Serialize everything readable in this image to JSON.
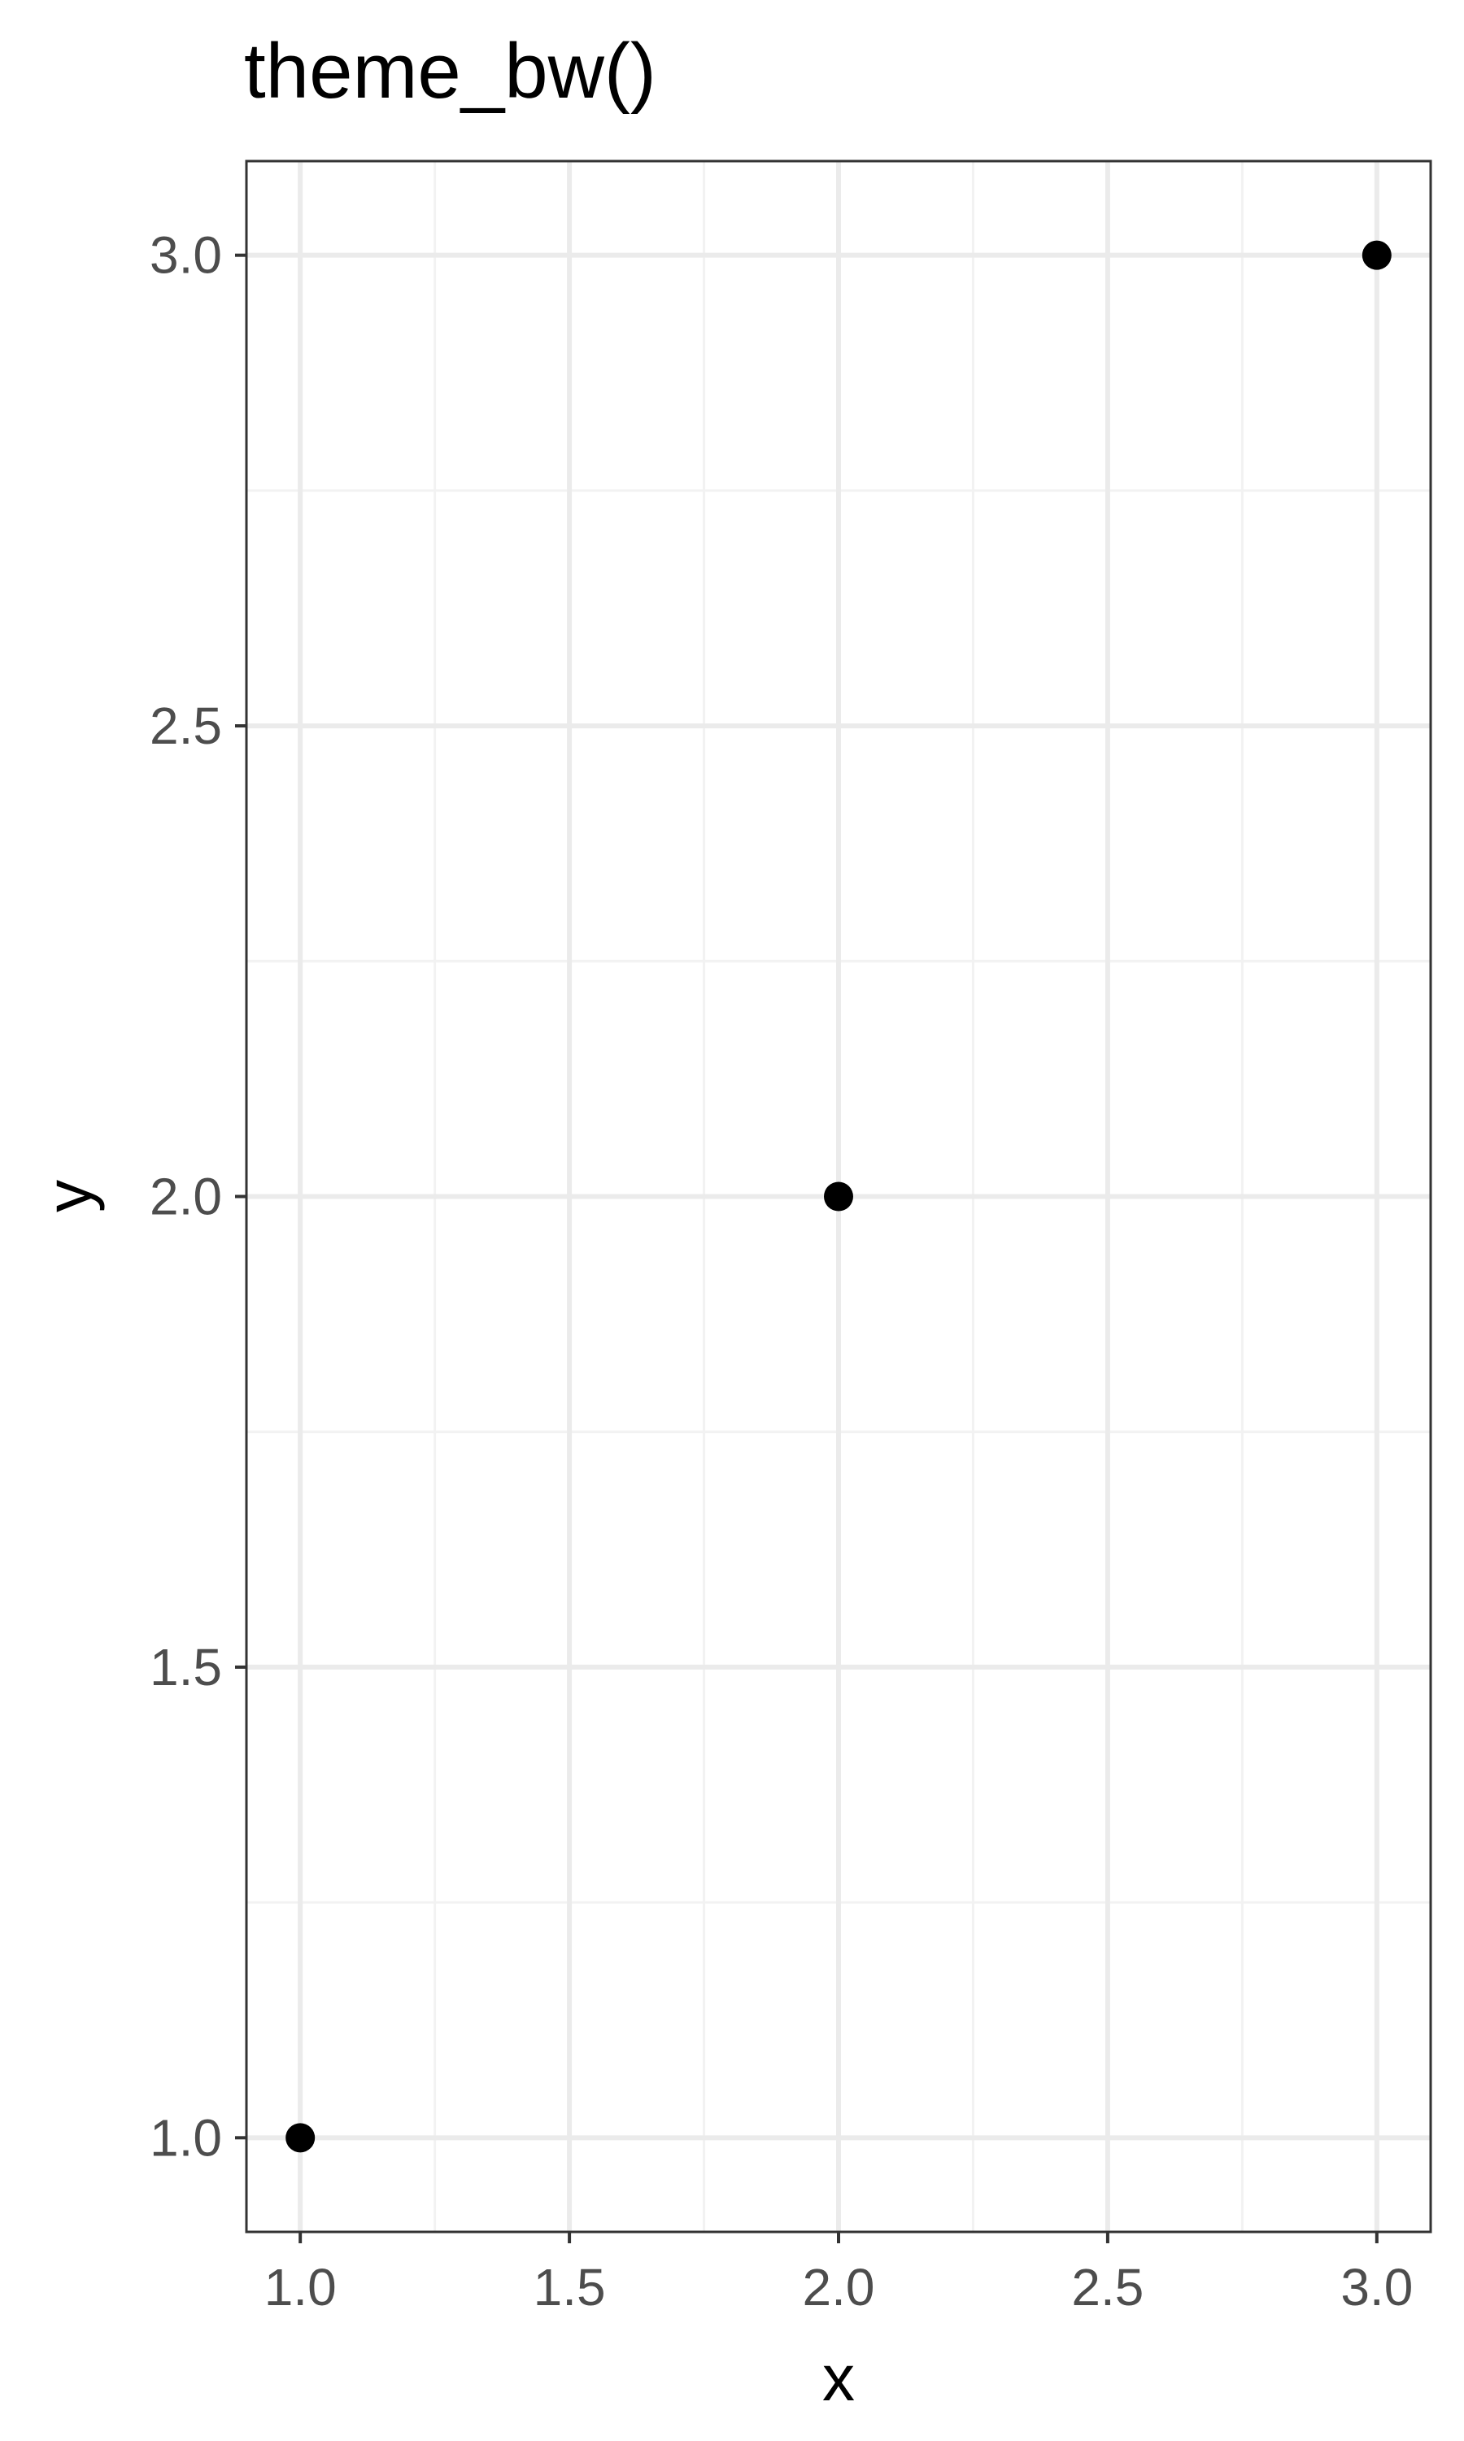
{
  "chart_data": {
    "type": "scatter",
    "title": "theme_bw()",
    "xlabel": "x",
    "ylabel": "y",
    "xlim": [
      0.9,
      3.1
    ],
    "ylim": [
      0.9,
      3.1
    ],
    "x_ticks": [
      1.0,
      1.5,
      2.0,
      2.5,
      3.0
    ],
    "y_ticks": [
      1.0,
      1.5,
      2.0,
      2.5,
      3.0
    ],
    "x_tick_labels": [
      "1.0",
      "1.5",
      "2.0",
      "2.5",
      "3.0"
    ],
    "y_tick_labels": [
      "1.0",
      "1.5",
      "2.0",
      "2.5",
      "3.0"
    ],
    "x_minor": [
      1.25,
      1.75,
      2.25,
      2.75
    ],
    "y_minor": [
      1.25,
      1.75,
      2.25,
      2.75
    ],
    "grid": true,
    "legend": "none",
    "series": [
      {
        "x": [
          1,
          2,
          3
        ],
        "y": [
          1,
          2,
          3
        ]
      }
    ],
    "colors": {
      "point": "#000000",
      "grid_major": "#ebebeb",
      "grid_minor": "#f2f2f2",
      "panel_border": "#333333",
      "tick_text": "#4d4d4d",
      "axis_title": "#000000"
    }
  }
}
